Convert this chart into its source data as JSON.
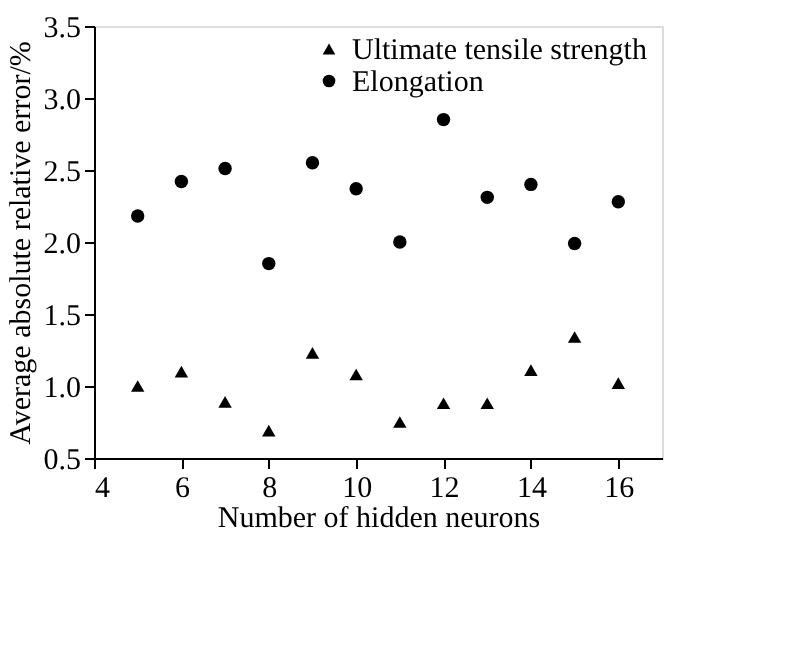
{
  "chart_data": {
    "type": "scatter",
    "xlabel": "Number of hidden neurons",
    "ylabel": "Average absolute relative error/%",
    "x": [
      5,
      6,
      7,
      8,
      9,
      10,
      11,
      12,
      13,
      14,
      15,
      16
    ],
    "series": [
      {
        "name": "Ultimate tensile strength",
        "color": "#000000",
        "marker": "triangle",
        "values": [
          1.0,
          1.1,
          0.89,
          0.69,
          1.23,
          1.08,
          0.75,
          0.88,
          0.88,
          1.11,
          1.34,
          1.02
        ]
      },
      {
        "name": "Elongation",
        "color": "#000000",
        "marker": "circle",
        "values": [
          2.18,
          2.42,
          2.51,
          1.85,
          2.55,
          2.37,
          2.0,
          2.85,
          2.31,
          2.4,
          1.99,
          2.28
        ]
      }
    ],
    "xlim": [
      4,
      17
    ],
    "xticks": [
      4,
      6,
      8,
      10,
      12,
      14,
      16
    ],
    "ylim": [
      0.5,
      3.5
    ],
    "yticks": [
      {
        "value": 0.5,
        "label": "0.5"
      },
      {
        "value": 1.0,
        "label": "1.0"
      },
      {
        "value": 1.5,
        "label": "1.5"
      },
      {
        "value": 2.0,
        "label": "2.0"
      },
      {
        "value": 2.5,
        "label": "2.5"
      },
      {
        "value": 3.0,
        "label": "3.0"
      },
      {
        "value": 3.5,
        "label": "3.5"
      }
    ],
    "grid": false,
    "legend": "top"
  }
}
